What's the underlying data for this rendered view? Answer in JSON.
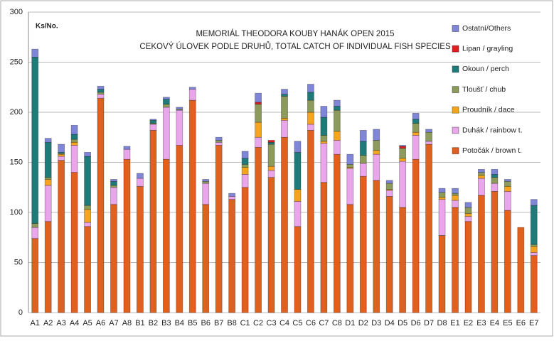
{
  "chart_data": {
    "type": "stacked-bar",
    "title": "MEMORIÁL THEODORA KOUBY HANÁK OPEN 2015",
    "subtitle": "CEKOVÝ ÚLOVEK PODLE DRUHŮ, TOTAL CATCH OF INDIVIDUAL FISH SPECIES",
    "y_label": "Ks/No.",
    "categories": [
      "A1",
      "A2",
      "A3",
      "A4",
      "A5",
      "A6",
      "A7",
      "A8",
      "B1",
      "B2",
      "B3",
      "B4",
      "B5",
      "B6",
      "B7",
      "B8",
      "C1",
      "C2",
      "C3",
      "C4",
      "C5",
      "C6",
      "C7",
      "C8",
      "D1",
      "D2",
      "D3",
      "D4",
      "D5",
      "D6",
      "D7",
      "D8",
      "E1",
      "E2",
      "E3",
      "E4",
      "E5",
      "E6",
      "E7"
    ],
    "series": [
      {
        "name": "Potočák / brown t.",
        "color": "#e0601e",
        "values": [
          74,
          91,
          152,
          140,
          86,
          214,
          108,
          153,
          126,
          182,
          153,
          167,
          212,
          108,
          167,
          113,
          125,
          165,
          135,
          175,
          86,
          182,
          130,
          158,
          108,
          136,
          132,
          116,
          105,
          153,
          168,
          77,
          105,
          91,
          117,
          121,
          102,
          85,
          57
        ]
      },
      {
        "name": "Duhák / rainbow t.",
        "color": "#eaa6ea",
        "values": [
          11,
          36,
          4,
          27,
          4,
          4,
          17,
          10,
          8,
          6,
          52,
          35,
          11,
          21,
          3,
          3,
          13,
          10,
          7,
          17,
          25,
          6,
          39,
          14,
          36,
          13,
          26,
          6,
          46,
          24,
          3,
          36,
          7,
          5,
          17,
          8,
          19,
          0,
          3
        ]
      },
      {
        "name": "Proudník / dace",
        "color": "#f6a41e",
        "values": [
          0,
          6,
          2,
          3,
          13,
          0,
          0,
          0,
          0,
          0,
          0,
          0,
          0,
          0,
          0,
          0,
          7,
          15,
          4,
          2,
          12,
          12,
          2,
          9,
          1,
          0,
          4,
          1,
          3,
          3,
          0,
          2,
          5,
          3,
          3,
          0,
          5,
          0,
          6
        ]
      },
      {
        "name": "Tloušť / chub",
        "color": "#8c9a5c",
        "values": [
          4,
          2,
          1,
          3,
          4,
          2,
          2,
          0,
          0,
          1,
          3,
          1,
          0,
          2,
          2,
          0,
          3,
          18,
          22,
          22,
          0,
          12,
          6,
          21,
          3,
          8,
          10,
          6,
          10,
          9,
          9,
          5,
          2,
          6,
          3,
          6,
          5,
          0,
          2
        ]
      },
      {
        "name": "Okoun / perch",
        "color": "#1f7a7a",
        "values": [
          166,
          35,
          1,
          5,
          49,
          3,
          4,
          0,
          0,
          3,
          5,
          0,
          0,
          0,
          0,
          0,
          6,
          0,
          2,
          2,
          37,
          8,
          18,
          4,
          0,
          14,
          0,
          0,
          0,
          4,
          0,
          0,
          0,
          0,
          0,
          3,
          0,
          0,
          39
        ]
      },
      {
        "name": "Lipan / grayling",
        "color": "#e02020",
        "values": [
          0,
          0,
          0,
          0,
          0,
          0,
          0,
          0,
          0,
          0,
          0,
          0,
          0,
          0,
          0,
          0,
          0,
          2,
          2,
          0,
          0,
          0,
          0,
          0,
          0,
          0,
          0,
          0,
          2,
          0,
          0,
          0,
          0,
          0,
          0,
          0,
          0,
          0,
          0
        ]
      },
      {
        "name": "Ostatní/Others",
        "color": "#7f86d8",
        "values": [
          8,
          4,
          8,
          9,
          4,
          3,
          2,
          3,
          5,
          1,
          2,
          2,
          2,
          2,
          3,
          3,
          7,
          9,
          0,
          5,
          11,
          8,
          11,
          6,
          10,
          11,
          11,
          3,
          1,
          6,
          3,
          4,
          5,
          5,
          3,
          5,
          2,
          0,
          6
        ]
      }
    ],
    "ylim": [
      0,
      300
    ],
    "yticks": [
      0,
      50,
      100,
      150,
      200,
      250,
      300
    ],
    "grid": true
  }
}
